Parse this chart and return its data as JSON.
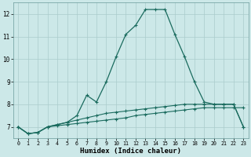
{
  "xlabel": "Humidex (Indice chaleur)",
  "xlim": [
    -0.5,
    23.5
  ],
  "ylim": [
    6.5,
    12.5
  ],
  "yticks": [
    7,
    8,
    9,
    10,
    11,
    12
  ],
  "xticks": [
    0,
    1,
    2,
    3,
    4,
    5,
    6,
    7,
    8,
    9,
    10,
    11,
    12,
    13,
    14,
    15,
    16,
    17,
    18,
    19,
    20,
    21,
    22,
    23
  ],
  "bg_color": "#cce8e8",
  "grid_color": "#aacccc",
  "line_color": "#1a6b5e",
  "line1_x": [
    0,
    1,
    2,
    3,
    4,
    5,
    6,
    7,
    8,
    9,
    10,
    11,
    12,
    13,
    14,
    15,
    16,
    17,
    18,
    19,
    20,
    21,
    22,
    23
  ],
  "line1_y": [
    7.0,
    6.7,
    6.75,
    7.0,
    7.05,
    7.1,
    7.15,
    7.2,
    7.25,
    7.3,
    7.35,
    7.4,
    7.5,
    7.55,
    7.6,
    7.65,
    7.7,
    7.75,
    7.8,
    7.85,
    7.85,
    7.85,
    7.85,
    7.85
  ],
  "line2_x": [
    0,
    1,
    2,
    3,
    4,
    5,
    6,
    7,
    8,
    9,
    10,
    11,
    12,
    13,
    14,
    15,
    16,
    17,
    18,
    19,
    20,
    21,
    22,
    23
  ],
  "line2_y": [
    7.0,
    6.7,
    6.75,
    7.0,
    7.1,
    7.2,
    7.3,
    7.4,
    7.5,
    7.6,
    7.65,
    7.7,
    7.75,
    7.8,
    7.85,
    7.9,
    7.95,
    8.0,
    8.0,
    8.0,
    8.0,
    8.0,
    8.0,
    7.0
  ],
  "line3_x": [
    0,
    1,
    2,
    3,
    4,
    5,
    6,
    7,
    8,
    9,
    10,
    11,
    12,
    13,
    14,
    15,
    16,
    17,
    18,
    19,
    20,
    21,
    22,
    23
  ],
  "line3_y": [
    7.0,
    6.7,
    6.75,
    7.0,
    7.1,
    7.2,
    7.5,
    8.4,
    8.1,
    9.0,
    10.1,
    11.1,
    11.5,
    12.2,
    12.2,
    12.2,
    11.1,
    10.1,
    9.0,
    8.1,
    8.0,
    8.0,
    8.0,
    7.0
  ]
}
